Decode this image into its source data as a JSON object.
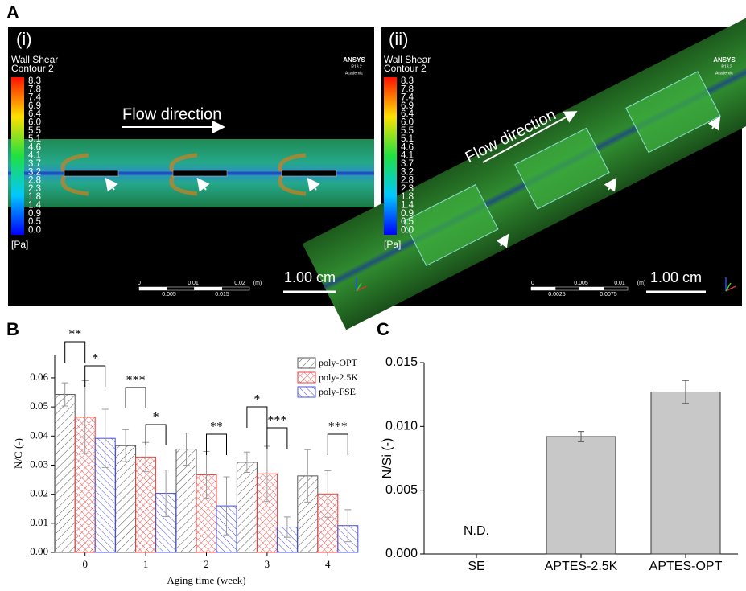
{
  "panel_labels": [
    "A",
    "B",
    "C"
  ],
  "panel_a": {
    "images": [
      {
        "label": "(i)",
        "legend_title": "Wall Shear",
        "legend_subtitle": "Contour 2",
        "unit": "[Pa]",
        "colorbar_labels": [
          "8.3",
          "7.8",
          "7.4",
          "6.9",
          "6.4",
          "6.0",
          "5.5",
          "5.1",
          "4.6",
          "4.1",
          "3.7",
          "3.2",
          "2.8",
          "2.3",
          "1.8",
          "1.4",
          "0.9",
          "0.5",
          "0.0"
        ],
        "brand": "ANSYS",
        "version": "R18.2",
        "edition": "Academic",
        "flow_label": "Flow direction",
        "scale_label": "1.00 cm",
        "ruler_labels": [
          "0",
          "0.01",
          "0.02",
          "(m)",
          "0.005",
          "0.015"
        ]
      },
      {
        "label": "(ii)",
        "legend_title": "Wall Shear",
        "legend_subtitle": "Contour 2",
        "unit": "[Pa]",
        "colorbar_labels": [
          "8.3",
          "7.8",
          "7.4",
          "6.9",
          "6.4",
          "6.0",
          "5.5",
          "5.1",
          "4.6",
          "4.1",
          "3.7",
          "3.2",
          "2.8",
          "2.3",
          "1.8",
          "1.4",
          "0.9",
          "0.5",
          "0.0"
        ],
        "brand": "ANSYS",
        "version": "R18.2",
        "edition": "Academic",
        "flow_label": "Flow direction",
        "scale_label": "1.00 cm",
        "ruler_labels": [
          "0",
          "0.005",
          "0.01",
          "(m)",
          "0.0025",
          "0.0075"
        ]
      }
    ]
  },
  "chart_data": [
    {
      "type": "grouped_bar",
      "x_label": "Aging time (week)",
      "y_label": "N/C (-)",
      "categories": [
        "0",
        "1",
        "2",
        "3",
        "4"
      ],
      "series": [
        {
          "name": "poly-OPT",
          "color": "#555555",
          "values": [
            0.0543,
            0.0367,
            0.0355,
            0.031,
            0.0263
          ],
          "errors": [
            0.004,
            0.0055,
            0.0055,
            0.0035,
            0.009
          ]
        },
        {
          "name": "poly-2.5K",
          "color": "#e8403c",
          "values": [
            0.0465,
            0.0328,
            0.0267,
            0.027,
            0.0201
          ],
          "errors": [
            0.0125,
            0.005,
            0.008,
            0.0095,
            0.008
          ]
        },
        {
          "name": "poly-FSE",
          "color": "#4a50d8",
          "values": [
            0.0392,
            0.0203,
            0.016,
            0.0087,
            0.0092
          ],
          "errors": [
            0.01,
            0.008,
            0.01,
            0.0035,
            0.0055
          ]
        }
      ],
      "ylim": [
        0,
        0.068
      ],
      "yticks": [
        {
          "value": 0,
          "label": "0.00"
        },
        0.01,
        0.02,
        0.03,
        0.04,
        0.05,
        0.06
      ],
      "legend": "top-right",
      "annotations": [
        {
          "text": "**"
        },
        {
          "text": "*"
        },
        {
          "text": "***"
        },
        {
          "text": "*"
        },
        {
          "text": "**"
        },
        {
          "text": "*"
        },
        {
          "text": "***"
        },
        {
          "text": "***"
        }
      ]
    },
    {
      "type": "bar",
      "y_label": "N/Si (-)",
      "categories": [
        "SE",
        "APTES-2.5K",
        "APTES-OPT"
      ],
      "values": [
        null,
        0.0092,
        0.0127
      ],
      "value_labels": [
        "N.D.",
        null,
        null
      ],
      "errors": [
        null,
        0.0004,
        0.0009
      ],
      "color": "#c8c8c8",
      "ylim": [
        0,
        0.015
      ],
      "yticks": [
        {
          "value": 0,
          "label": "0.000"
        },
        0.005,
        {
          "value": 0.01,
          "label": "0.010"
        },
        0.015
      ]
    }
  ]
}
